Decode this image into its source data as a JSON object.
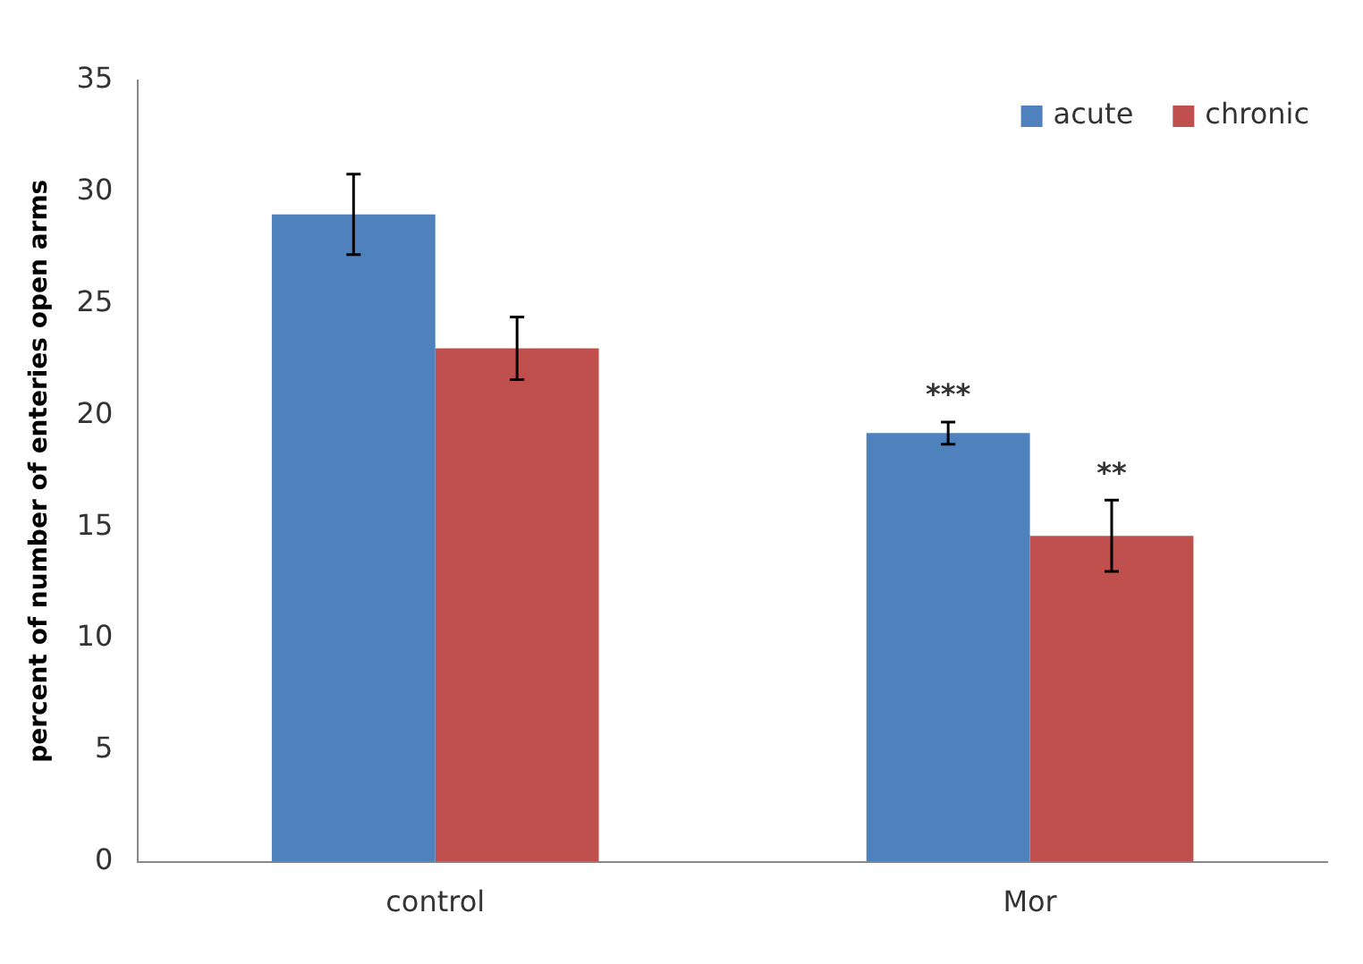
{
  "chart_data": {
    "type": "bar",
    "ylabel": "percent of number of enteries open arms",
    "categories": [
      "control",
      "Mor"
    ],
    "series": [
      {
        "name": "acute",
        "color": "#4f81bd",
        "values": [
          29.0,
          19.2
        ],
        "errors": [
          1.8,
          0.5
        ]
      },
      {
        "name": "chronic",
        "color": "#c0504d",
        "values": [
          23.0,
          14.6
        ],
        "errors": [
          1.4,
          1.6
        ]
      }
    ],
    "ylim": [
      0,
      35
    ],
    "yticks": [
      0,
      5,
      10,
      15,
      20,
      25,
      30,
      35
    ],
    "grid": false,
    "legend": "top right",
    "annotations": [
      {
        "text": "***",
        "x": "Mor",
        "y": 19.2
      },
      {
        "text": "**",
        "x": "Mor",
        "y": 14.6
      }
    ]
  }
}
